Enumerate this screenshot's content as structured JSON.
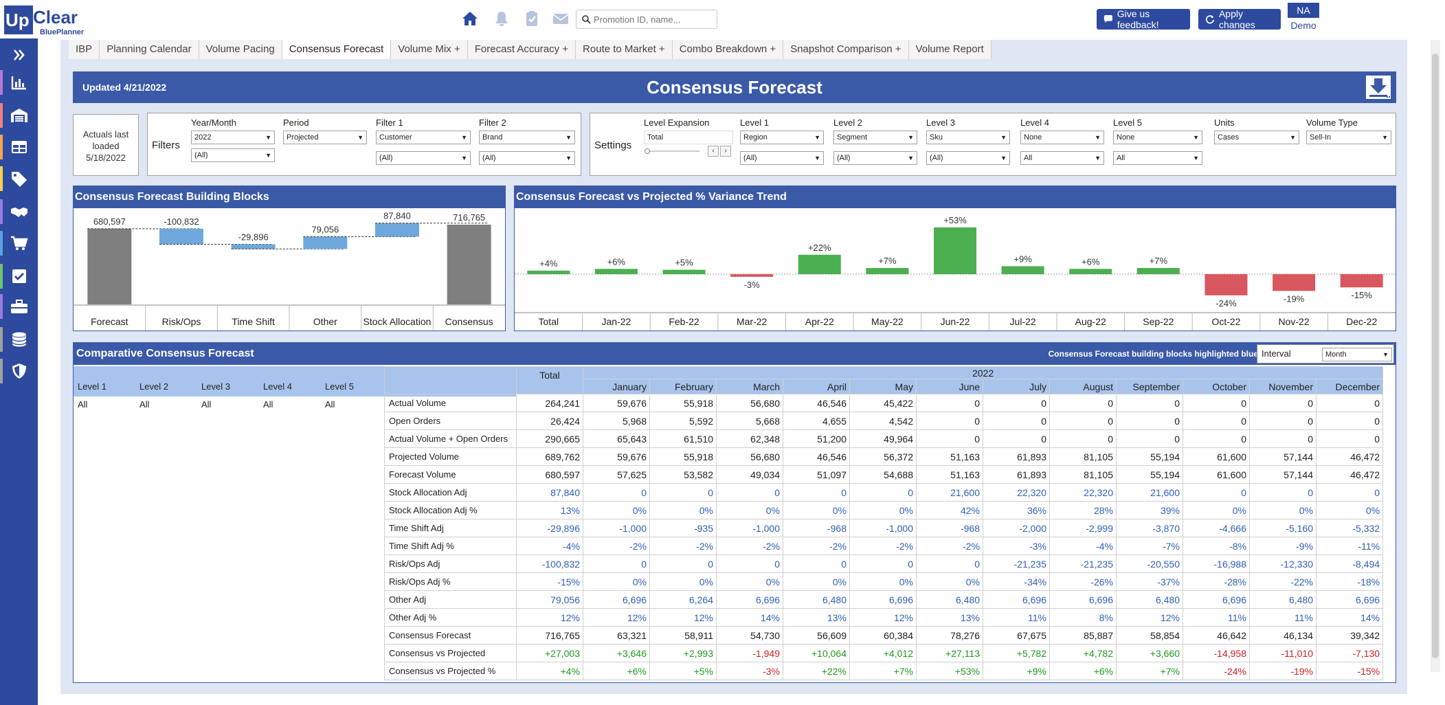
{
  "header": {
    "logo_up": "Up",
    "logo_clear": "Clear",
    "logo_sub": "BluePlanner",
    "search_placeholder": "Promotion ID, name...",
    "feedback_label": "Give us feedback!",
    "apply_label": "Apply changes",
    "user_initials": "NA",
    "user_name": "Demo"
  },
  "colors": {
    "brand": "#2d4a9e",
    "band": "#3a5aa8",
    "header_cell": "#a8c4ec",
    "positive": "#4caf50",
    "negative": "#d9575e",
    "bar_blue": "#6fa8dc",
    "bar_gray": "#7f7f7f"
  },
  "sidebar": {
    "items": [
      {
        "icon": "expand-icon",
        "stripe": ""
      },
      {
        "icon": "bar-chart-icon",
        "stripe": "#b57ad4"
      },
      {
        "icon": "warehouse-icon",
        "stripe": "#f08080"
      },
      {
        "icon": "table-icon",
        "stripe": "#f6a54e"
      },
      {
        "icon": "tag-icon",
        "stripe": "#f6d04e"
      },
      {
        "icon": "handshake-icon",
        "stripe": "#9a7ae0"
      },
      {
        "icon": "cart-icon",
        "stripe": "#5aa0e0"
      },
      {
        "icon": "checkbox-icon",
        "stripe": "#6cc46c"
      },
      {
        "icon": "toolbox-icon",
        "stripe": "#9a7ae0"
      },
      {
        "icon": "database-icon",
        "stripe": "#a0a0a0"
      },
      {
        "icon": "shield-icon",
        "stripe": "#a0a0a0"
      }
    ]
  },
  "tabs": [
    "IBP",
    "Planning Calendar",
    "Volume Pacing",
    "Consensus Forecast",
    "Volume Mix +",
    "Forecast Accuracy +",
    "Route to Market +",
    "Combo Breakdown +",
    "Snapshot Comparison +",
    "Volume Report"
  ],
  "active_tab": "Consensus Forecast",
  "title_band": {
    "updated": "Updated 4/21/2022",
    "title": "Consensus Forecast"
  },
  "actuals": {
    "line1": "Actuals last",
    "line2": "loaded",
    "line3": "5/18/2022"
  },
  "filters": {
    "label": "Filters",
    "year_month_label": "Year/Month",
    "year_month_value": "2022",
    "year_month_sub": "(All)",
    "period_label": "Period",
    "period_value": "Projected",
    "filter1_label": "Filter 1",
    "filter1_value": "Customer",
    "filter1_sub": "(All)",
    "filter2_label": "Filter 2",
    "filter2_value": "Brand",
    "filter2_sub": "(All)"
  },
  "settings": {
    "label": "Settings",
    "level_expansion_label": "Level Expansion",
    "level_expansion_value": "Total",
    "level1_label": "Level 1",
    "level1_value": "Region",
    "level1_sub": "(All)",
    "level2_label": "Level 2",
    "level2_value": "Segment",
    "level2_sub": "(All)",
    "level3_label": "Level 3",
    "level3_value": "Sku",
    "level3_sub": "(All)",
    "level4_label": "Level 4",
    "level4_value": "None",
    "level4_sub": "All",
    "level5_label": "Level 5",
    "level5_value": "None",
    "level5_sub": "All",
    "units_label": "Units",
    "units_value": "Cases",
    "volume_type_label": "Volume Type",
    "volume_type_value": "Sell-In"
  },
  "chart_data": [
    {
      "type": "bar",
      "title": "Consensus Forecast Building Blocks",
      "categories": [
        "Forecast",
        "Risk/Ops",
        "Time Shift",
        "Other",
        "Stock Allocation",
        "Consensus"
      ],
      "values": [
        680597,
        -100832,
        -29896,
        79056,
        87840,
        716765
      ],
      "labels": [
        "680,597",
        "-100,832",
        "-29,896",
        "79,056",
        "87,840",
        "716,765"
      ]
    },
    {
      "type": "bar",
      "title": "Consensus Forecast vs Projected % Variance Trend",
      "categories": [
        "Total",
        "Jan-22",
        "Feb-22",
        "Mar-22",
        "Apr-22",
        "May-22",
        "Jun-22",
        "Jul-22",
        "Aug-22",
        "Sep-22",
        "Oct-22",
        "Nov-22",
        "Dec-22"
      ],
      "values": [
        4,
        6,
        5,
        -3,
        22,
        7,
        53,
        9,
        6,
        7,
        -24,
        -19,
        -15
      ],
      "labels": [
        "+4%",
        "+6%",
        "+5%",
        "-3%",
        "+22%",
        "+7%",
        "+53%",
        "+9%",
        "+6%",
        "+7%",
        "-24%",
        "-19%",
        "-15%"
      ]
    }
  ],
  "table": {
    "title": "Comparative Consensus Forecast",
    "note": "Consensus Forecast building blocks highlighted blue",
    "interval_label": "Interval",
    "interval_value": "Month",
    "level_headers": [
      "Level 1",
      "Level 2",
      "Level 3",
      "Level 4",
      "Level 5"
    ],
    "level_values": [
      "All",
      "All",
      "All",
      "All",
      "All"
    ],
    "total_header": "Total",
    "year_header": "2022",
    "months": [
      "January",
      "February",
      "March",
      "April",
      "May",
      "June",
      "July",
      "August",
      "September",
      "October",
      "November",
      "December"
    ],
    "rows": [
      {
        "label": "Actual Volume",
        "style": "blk",
        "values": [
          "264,241",
          "59,676",
          "55,918",
          "56,680",
          "46,546",
          "45,422",
          "0",
          "0",
          "0",
          "0",
          "0",
          "0",
          "0"
        ]
      },
      {
        "label": "Open Orders",
        "style": "blk",
        "values": [
          "26,424",
          "5,968",
          "5,592",
          "5,668",
          "4,655",
          "4,542",
          "0",
          "0",
          "0",
          "0",
          "0",
          "0",
          "0"
        ]
      },
      {
        "label": "Actual Volume + Open Orders",
        "style": "blk",
        "values": [
          "290,665",
          "65,643",
          "61,510",
          "62,348",
          "51,200",
          "49,964",
          "0",
          "0",
          "0",
          "0",
          "0",
          "0",
          "0"
        ]
      },
      {
        "label": "Projected Volume",
        "style": "blk",
        "values": [
          "689,762",
          "59,676",
          "55,918",
          "56,680",
          "46,546",
          "56,372",
          "51,163",
          "61,893",
          "81,105",
          "55,194",
          "61,600",
          "57,144",
          "46,472"
        ]
      },
      {
        "label": "Forecast Volume",
        "style": "blk",
        "values": [
          "680,597",
          "57,625",
          "53,582",
          "49,034",
          "51,097",
          "54,688",
          "51,163",
          "61,893",
          "81,105",
          "55,194",
          "61,600",
          "57,144",
          "46,472"
        ]
      },
      {
        "label": "Stock Allocation Adj",
        "style": "blu",
        "values": [
          "87,840",
          "0",
          "0",
          "0",
          "0",
          "0",
          "21,600",
          "22,320",
          "22,320",
          "21,600",
          "0",
          "0",
          "0"
        ]
      },
      {
        "label": "Stock Allocation Adj %",
        "style": "blu",
        "values": [
          "13%",
          "0%",
          "0%",
          "0%",
          "0%",
          "0%",
          "42%",
          "36%",
          "28%",
          "39%",
          "0%",
          "0%",
          "0%"
        ]
      },
      {
        "label": "Time Shift Adj",
        "style": "blu",
        "values": [
          "-29,896",
          "-1,000",
          "-935",
          "-1,000",
          "-968",
          "-1,000",
          "-968",
          "-2,000",
          "-2,999",
          "-3,870",
          "-4,666",
          "-5,160",
          "-5,332"
        ]
      },
      {
        "label": "Time Shift Adj %",
        "style": "blu",
        "values": [
          "-4%",
          "-2%",
          "-2%",
          "-2%",
          "-2%",
          "-2%",
          "-2%",
          "-3%",
          "-4%",
          "-7%",
          "-8%",
          "-9%",
          "-11%"
        ]
      },
      {
        "label": "Risk/Ops Adj",
        "style": "blu",
        "values": [
          "-100,832",
          "0",
          "0",
          "0",
          "0",
          "0",
          "0",
          "-21,235",
          "-21,235",
          "-20,550",
          "-16,988",
          "-12,330",
          "-8,494"
        ]
      },
      {
        "label": "Risk/Ops Adj %",
        "style": "blu",
        "values": [
          "-15%",
          "0%",
          "0%",
          "0%",
          "0%",
          "0%",
          "0%",
          "-34%",
          "-26%",
          "-37%",
          "-28%",
          "-22%",
          "-18%"
        ]
      },
      {
        "label": "Other Adj",
        "style": "blu",
        "values": [
          "79,056",
          "6,696",
          "6,264",
          "6,696",
          "6,480",
          "6,696",
          "6,480",
          "6,696",
          "6,696",
          "6,480",
          "6,696",
          "6,480",
          "6,696"
        ]
      },
      {
        "label": "Other Adj %",
        "style": "blu",
        "values": [
          "12%",
          "12%",
          "12%",
          "14%",
          "13%",
          "12%",
          "13%",
          "11%",
          "8%",
          "12%",
          "11%",
          "11%",
          "14%"
        ]
      },
      {
        "label": "Consensus Forecast",
        "style": "blk",
        "values": [
          "716,765",
          "63,321",
          "58,911",
          "54,730",
          "56,609",
          "60,384",
          "78,276",
          "67,675",
          "85,887",
          "58,854",
          "46,642",
          "46,134",
          "39,342"
        ]
      },
      {
        "label": "Consensus vs Projected",
        "style": "sign",
        "values": [
          "+27,003",
          "+3,646",
          "+2,993",
          "-1,949",
          "+10,064",
          "+4,012",
          "+27,113",
          "+5,782",
          "+4,782",
          "+3,660",
          "-14,958",
          "-11,010",
          "-7,130"
        ]
      },
      {
        "label": "Consensus vs Projected %",
        "style": "sign",
        "values": [
          "+4%",
          "+6%",
          "+5%",
          "-3%",
          "+22%",
          "+7%",
          "+53%",
          "+9%",
          "+6%",
          "+7%",
          "-24%",
          "-19%",
          "-15%"
        ]
      }
    ]
  }
}
